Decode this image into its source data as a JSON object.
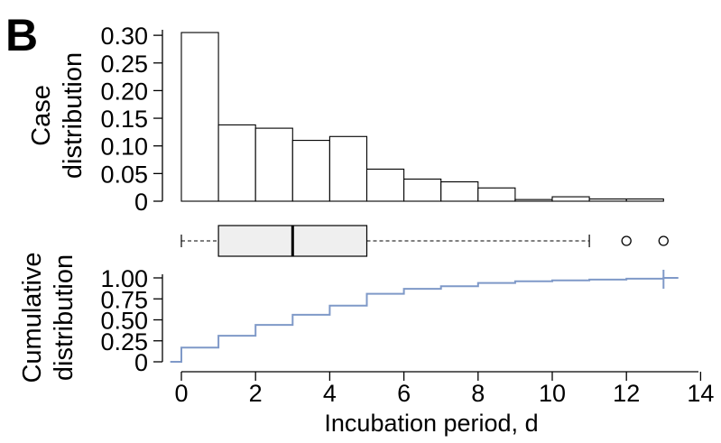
{
  "panel_letter": "B",
  "chart_data": [
    {
      "type": "bar",
      "panel": "histogram",
      "ylabel": [
        "Case",
        "distribution"
      ],
      "yticks": [
        "0",
        "0.05",
        "0.10",
        "0.15",
        "0.20",
        "0.25",
        "0.30"
      ],
      "ylim": [
        0,
        0.31
      ],
      "bin_edges": [
        0,
        1,
        2,
        3,
        4,
        5,
        6,
        7,
        8,
        9,
        10,
        11,
        12,
        13
      ],
      "values": [
        0.305,
        0.138,
        0.132,
        0.11,
        0.117,
        0.058,
        0.04,
        0.035,
        0.024,
        0.003,
        0.008,
        0.004,
        0.004
      ]
    },
    {
      "type": "box",
      "panel": "boxplot",
      "min": 0,
      "q1": 1,
      "median": 3,
      "q3": 5,
      "whisker_high": 11,
      "outliers": [
        12,
        13
      ]
    },
    {
      "type": "line",
      "panel": "ecdf",
      "step": true,
      "ylabel": [
        "Cumulative",
        "distribution"
      ],
      "yticks": [
        "0",
        "0.25",
        "0.50",
        "0.75",
        "1.00"
      ],
      "ylim": [
        0,
        1
      ],
      "xlabel": "Incubation period, d",
      "xticks": [
        "0",
        "2",
        "4",
        "6",
        "8",
        "10",
        "12",
        "14"
      ],
      "xlim": [
        -0.4,
        14
      ],
      "line_color": "#7f99c8",
      "x": [
        -0.3,
        0,
        1,
        2,
        3,
        4,
        5,
        6,
        7,
        8,
        9,
        10,
        11,
        12,
        13,
        13.4
      ],
      "y": [
        0,
        0.17,
        0.31,
        0.44,
        0.56,
        0.67,
        0.81,
        0.87,
        0.9,
        0.94,
        0.96,
        0.97,
        0.98,
        0.99,
        1.0,
        1.0
      ]
    }
  ]
}
